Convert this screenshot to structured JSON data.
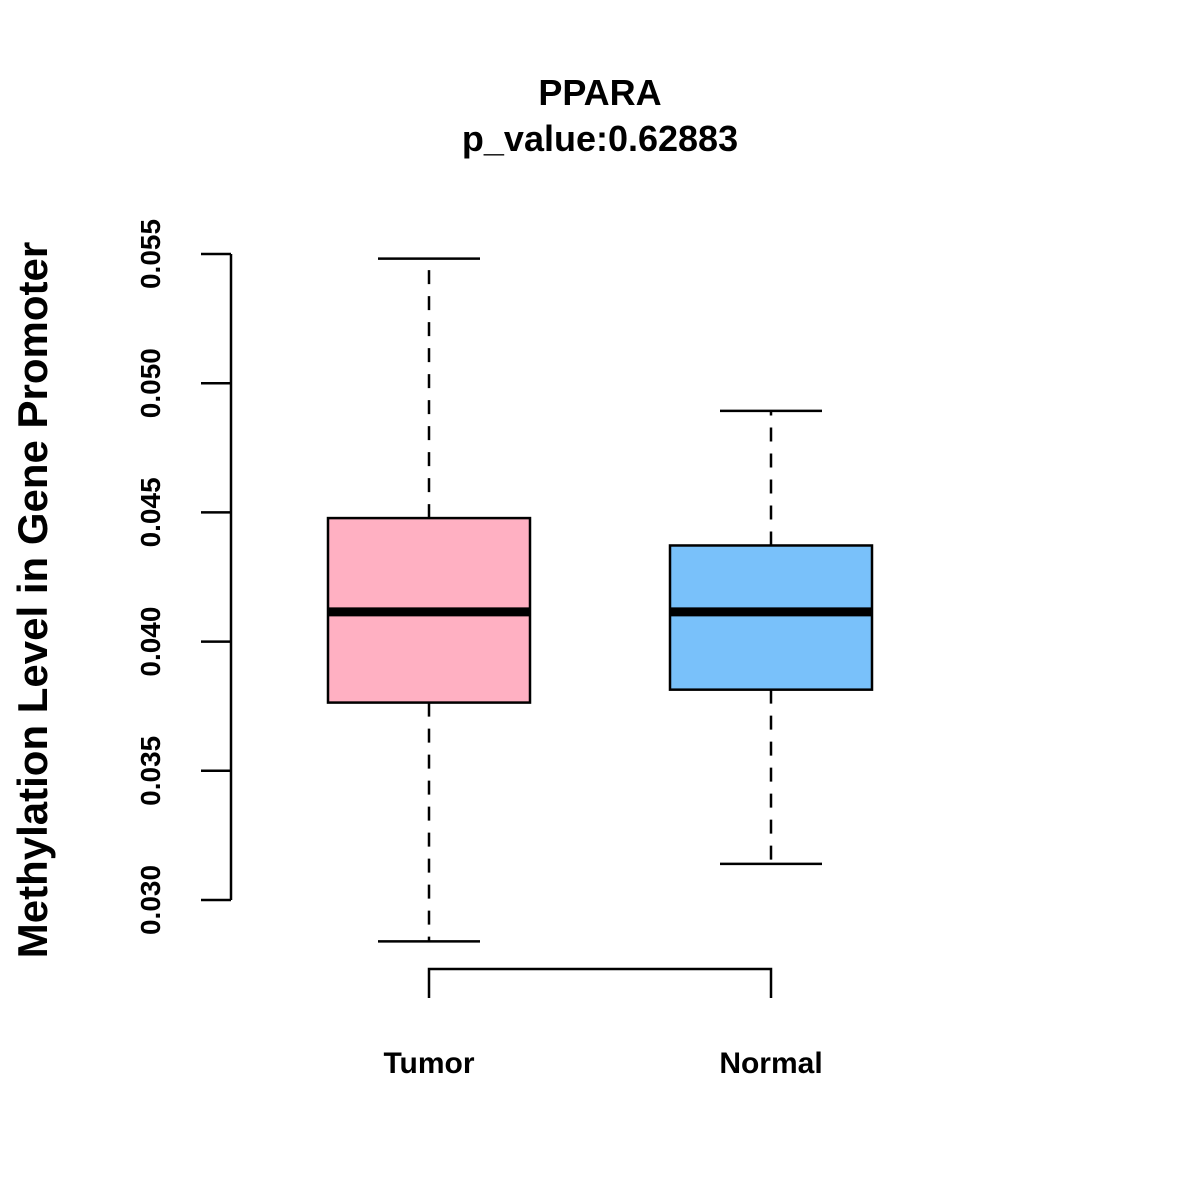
{
  "chart_data": {
    "type": "boxplot",
    "title": "PPARA",
    "subtitle": "p_value:0.62883",
    "xlabel": "",
    "ylabel": "Methylation Level in Gene Promoter",
    "ylim": [
      0.03,
      0.055
    ],
    "yticks": [
      0.03,
      0.035,
      0.04,
      0.045,
      0.05,
      0.055
    ],
    "ytick_labels": [
      "0.030",
      "0.035",
      "0.040",
      "0.045",
      "0.050",
      "0.055"
    ],
    "categories": [
      "Tumor",
      "Normal"
    ],
    "series": [
      {
        "name": "Tumor",
        "color": "#FFB0C2",
        "whisker_low": 0.0284,
        "q1": 0.03764,
        "median": 0.04115,
        "q3": 0.04478,
        "whisker_high": 0.05482
      },
      {
        "name": "Normal",
        "color": "#79C1FA",
        "whisker_low": 0.0314,
        "q1": 0.03814,
        "median": 0.04115,
        "q3": 0.04372,
        "whisker_high": 0.04893
      }
    ],
    "grid": false,
    "comparison_bracket": [
      "Tumor",
      "Normal"
    ]
  }
}
